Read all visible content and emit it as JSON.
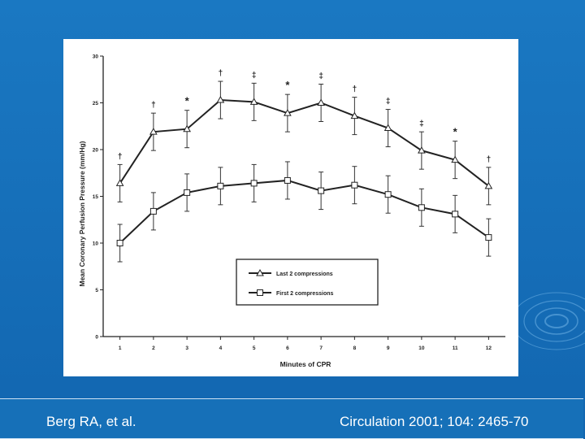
{
  "footer": {
    "author": "Berg RA, et al.",
    "citation": "Circulation 2001; 104: 2465-70"
  },
  "chart_data": {
    "type": "line",
    "title": "",
    "xlabel": "Minutes of CPR",
    "ylabel": "Mean Coronary Perfusion Pressure (mm/Hg)",
    "x": [
      1,
      2,
      3,
      4,
      5,
      6,
      7,
      8,
      9,
      10,
      11,
      12
    ],
    "ylim": [
      0,
      30
    ],
    "yticks": [
      0,
      5,
      10,
      15,
      20,
      25,
      30
    ],
    "grid": false,
    "legend_position": "lower-right",
    "series": [
      {
        "name": "Last 2 compressions",
        "marker": "triangle",
        "values": [
          16.4,
          21.9,
          22.2,
          25.3,
          25.1,
          23.9,
          25.0,
          23.6,
          22.3,
          19.9,
          18.9,
          16.1
        ],
        "errors": [
          2.0,
          2.0,
          2.0,
          2.0,
          2.0,
          2.0,
          2.0,
          2.0,
          2.0,
          2.0,
          2.0,
          2.0
        ],
        "annotations": [
          "†",
          "†",
          "*",
          "†",
          "‡",
          "*",
          "‡",
          "†",
          "‡",
          "‡",
          "*",
          "†"
        ]
      },
      {
        "name": "First 2 compressions",
        "marker": "square",
        "values": [
          10.0,
          13.4,
          15.4,
          16.1,
          16.4,
          16.7,
          15.6,
          16.2,
          15.2,
          13.8,
          13.1,
          10.6
        ],
        "errors": [
          2.0,
          2.0,
          2.0,
          2.0,
          2.0,
          2.0,
          2.0,
          2.0,
          2.0,
          2.0,
          2.0,
          2.0
        ]
      }
    ]
  }
}
